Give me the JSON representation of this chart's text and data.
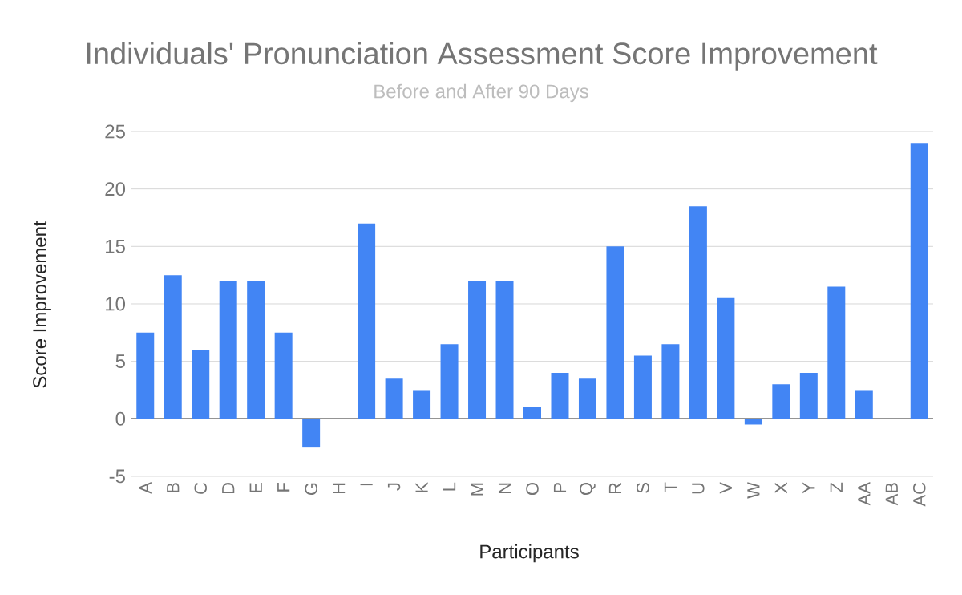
{
  "chart_data": {
    "type": "bar",
    "title": "Individuals' Pronunciation Assessment Score Improvement",
    "subtitle": "Before and After 90 Days",
    "xlabel": "Participants",
    "ylabel": "Score Improvement",
    "categories": [
      "A",
      "B",
      "C",
      "D",
      "E",
      "F",
      "G",
      "H",
      "I",
      "J",
      "K",
      "L",
      "M",
      "N",
      "O",
      "P",
      "Q",
      "R",
      "S",
      "T",
      "U",
      "V",
      "W",
      "X",
      "Y",
      "Z",
      "AA",
      "AB",
      "AC"
    ],
    "values": [
      7.5,
      12.5,
      6,
      12,
      12,
      7.5,
      -2.5,
      0,
      17,
      3.5,
      2.5,
      6.5,
      12,
      12,
      1,
      4,
      3.5,
      15,
      5.5,
      6.5,
      18.5,
      10.5,
      -0.5,
      3,
      4,
      11.5,
      2.5,
      0,
      24
    ],
    "color": "#4285f4",
    "ylim": [
      -5,
      25
    ],
    "yticks": [
      -5,
      0,
      5,
      10,
      15,
      20,
      25
    ],
    "grid": "y"
  }
}
